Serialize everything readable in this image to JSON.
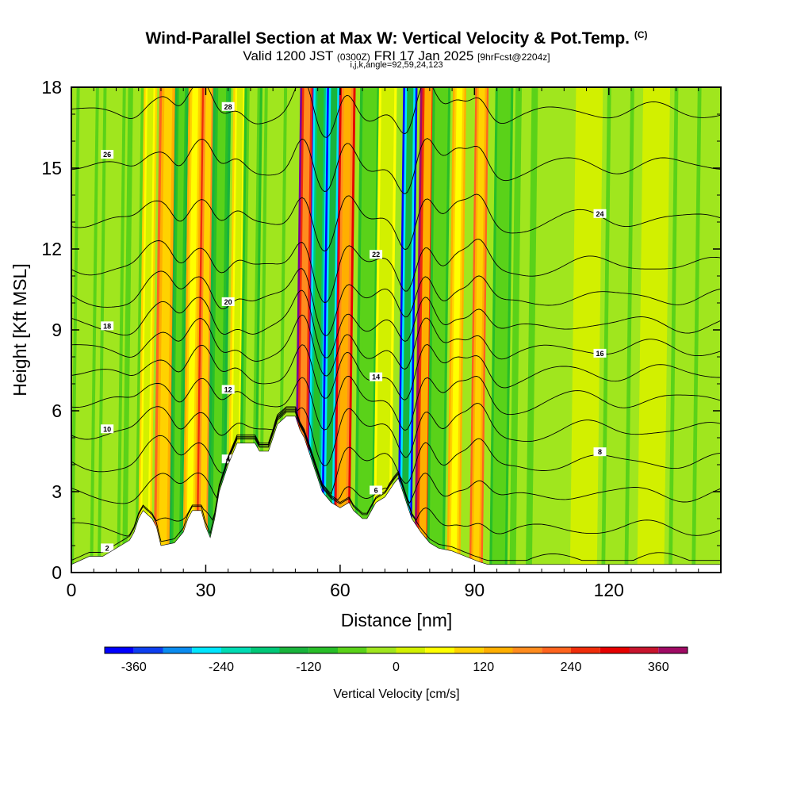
{
  "header": {
    "title_main": "Wind-Parallel Section at Max W: Vertical Velocity & Pot.Temp.",
    "title_mark": "(C)",
    "valid_prefix": "Valid 1200 JST",
    "valid_utc": "(0300Z)",
    "valid_date": "FRI 17 Jan 2025",
    "valid_fcst": "[9hrFcst@2204z]",
    "indices": "i,j,k,angle=92,59,24,123"
  },
  "chart_data": {
    "type": "heatmap",
    "xlabel": "Distance [nm]",
    "ylabel": "Height [Kft MSL]",
    "xlim": [
      0,
      145
    ],
    "ylim": [
      0,
      18
    ],
    "x_ticks": [
      "0",
      "30",
      "60",
      "90",
      "120"
    ],
    "y_ticks": [
      "0",
      "3",
      "6",
      "9",
      "12",
      "15",
      "18"
    ],
    "colorbar": {
      "label": "Vertical Velocity [cm/s]",
      "tick_labels": [
        "-360",
        "-240",
        "-120",
        "0",
        "120",
        "240",
        "360"
      ],
      "tick_values": [
        -360,
        -240,
        -120,
        0,
        120,
        240,
        360
      ],
      "levels": [
        -400,
        -360,
        -320,
        -280,
        -240,
        -200,
        -160,
        -120,
        -80,
        -40,
        0,
        40,
        80,
        120,
        160,
        200,
        240,
        280,
        320,
        360,
        400
      ],
      "colors": [
        "#0000ff",
        "#0d3ff0",
        "#0a8cf0",
        "#00e6ff",
        "#00dcb4",
        "#00c878",
        "#19b43c",
        "#28be28",
        "#5ad219",
        "#a0e61e",
        "#d2f000",
        "#ffff00",
        "#ffd200",
        "#ffaf00",
        "#ff8c1e",
        "#ff641e",
        "#f02d0a",
        "#e60000",
        "#c8142d",
        "#a00a64",
        "#780096"
      ]
    },
    "terrain": [
      [
        0,
        0.3
      ],
      [
        4,
        0.6
      ],
      [
        7,
        0.6
      ],
      [
        10,
        0.9
      ],
      [
        13,
        1.2
      ],
      [
        14,
        1.5
      ],
      [
        15,
        2.0
      ],
      [
        16,
        2.3
      ],
      [
        18,
        2.0
      ],
      [
        19,
        1.7
      ],
      [
        20,
        1.0
      ],
      [
        23,
        1.1
      ],
      [
        25,
        1.5
      ],
      [
        26,
        2.0
      ],
      [
        27,
        2.3
      ],
      [
        29,
        2.3
      ],
      [
        30,
        1.7
      ],
      [
        31,
        1.3
      ],
      [
        32,
        2.0
      ],
      [
        33,
        3.0
      ],
      [
        35,
        4.0
      ],
      [
        37,
        4.8
      ],
      [
        41,
        4.8
      ],
      [
        42,
        4.5
      ],
      [
        44,
        4.5
      ],
      [
        45,
        5.0
      ],
      [
        46,
        5.5
      ],
      [
        48,
        5.8
      ],
      [
        50,
        5.8
      ],
      [
        51,
        5.3
      ],
      [
        52,
        5.0
      ],
      [
        53,
        4.5
      ],
      [
        54,
        4.0
      ],
      [
        55,
        3.5
      ],
      [
        56,
        3.0
      ],
      [
        57,
        2.8
      ],
      [
        58,
        2.6
      ],
      [
        60,
        2.4
      ],
      [
        62,
        2.6
      ],
      [
        63,
        2.3
      ],
      [
        65,
        2.0
      ],
      [
        66,
        2.0
      ],
      [
        67,
        2.3
      ],
      [
        68,
        2.6
      ],
      [
        70,
        2.8
      ],
      [
        72,
        3.3
      ],
      [
        73,
        3.5
      ],
      [
        74,
        3.0
      ],
      [
        75,
        2.5
      ],
      [
        76,
        2.0
      ],
      [
        78,
        1.5
      ],
      [
        80,
        1.1
      ],
      [
        82,
        0.9
      ],
      [
        85,
        0.8
      ],
      [
        88,
        0.6
      ],
      [
        91,
        0.4
      ],
      [
        93,
        0.3
      ],
      [
        145,
        0.3
      ]
    ],
    "theta_contours": [
      {
        "label": "2",
        "base": 0.5
      },
      {
        "label": "4",
        "base": 1.7
      },
      {
        "label": "6",
        "base": 3.0
      },
      {
        "label": "8",
        "base": 4.2
      },
      {
        "label": "10",
        "base": 5.4
      },
      {
        "label": "12",
        "base": 6.5
      },
      {
        "label": "14",
        "base": 7.5
      },
      {
        "label": "16",
        "base": 8.4
      },
      {
        "label": "18",
        "base": 9.3
      },
      {
        "label": "20",
        "base": 10.3
      },
      {
        "label": "22",
        "base": 11.5
      },
      {
        "label": "24",
        "base": 13.2
      },
      {
        "label": "26",
        "base": 15.2
      },
      {
        "label": "28",
        "base": 17.2
      }
    ],
    "w_bands": [
      {
        "x": 3,
        "w": -60,
        "width": 2.5
      },
      {
        "x": 9,
        "w": -50,
        "width": 2.5
      },
      {
        "x": 14,
        "w": -70,
        "width": 2
      },
      {
        "x": 17,
        "w": 90,
        "width": 1.5
      },
      {
        "x": 21,
        "w": 220,
        "width": 2
      },
      {
        "x": 24,
        "w": -130,
        "width": 1.5
      },
      {
        "x": 27,
        "w": 150,
        "width": 1.5
      },
      {
        "x": 30,
        "w": 250,
        "width": 1.5
      },
      {
        "x": 33,
        "w": -150,
        "width": 2
      },
      {
        "x": 37,
        "w": 80,
        "width": 1.5
      },
      {
        "x": 40,
        "w": -90,
        "width": 2
      },
      {
        "x": 45,
        "w": -60,
        "width": 2.5
      },
      {
        "x": 52,
        "w": 400,
        "width": 1.6
      },
      {
        "x": 55,
        "w": -280,
        "width": 1.6
      },
      {
        "x": 58,
        "w": -380,
        "width": 1.6
      },
      {
        "x": 61,
        "w": 300,
        "width": 1.8
      },
      {
        "x": 66,
        "w": -110,
        "width": 2.2
      },
      {
        "x": 70,
        "w": 50,
        "width": 2
      },
      {
        "x": 75,
        "w": -400,
        "width": 1.6
      },
      {
        "x": 79,
        "w": 380,
        "width": 1.8
      },
      {
        "x": 82,
        "w": -120,
        "width": 2
      },
      {
        "x": 86,
        "w": 130,
        "width": 1.5
      },
      {
        "x": 91,
        "w": 220,
        "width": 1.5
      },
      {
        "x": 96,
        "w": -110,
        "width": 2
      },
      {
        "x": 101,
        "w": -80,
        "width": 2.5
      },
      {
        "x": 107,
        "w": -40,
        "width": 3
      },
      {
        "x": 115,
        "w": 20,
        "width": 3
      },
      {
        "x": 122,
        "w": -60,
        "width": 3
      },
      {
        "x": 130,
        "w": 20,
        "width": 3
      },
      {
        "x": 137,
        "w": -60,
        "width": 3
      }
    ]
  }
}
